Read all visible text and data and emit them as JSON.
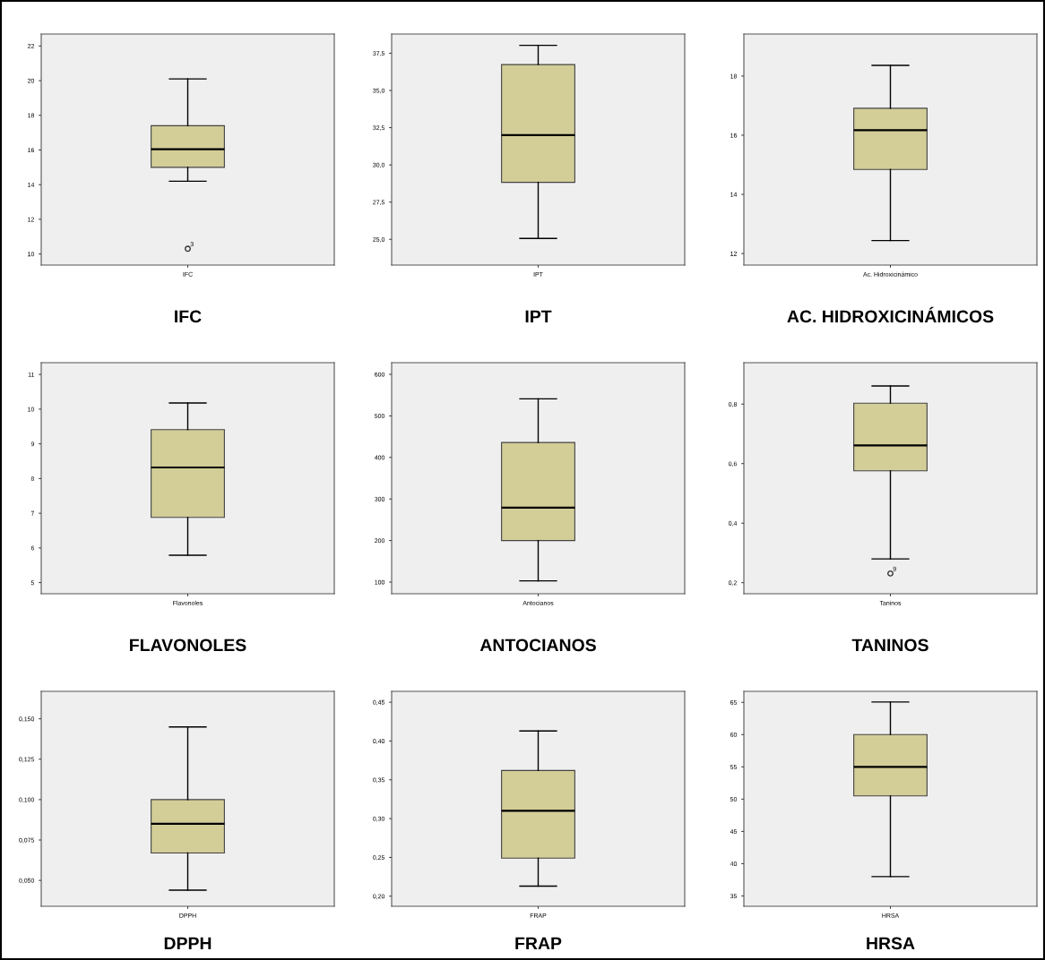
{
  "chart_data": [
    {
      "type": "box",
      "title": "IFC",
      "categories": [
        "IFC"
      ],
      "boxes": [
        {
          "low": 14.2,
          "q1": 15.0,
          "median": 16.05,
          "q3": 17.4,
          "high": 20.1,
          "outliers": [
            10.3
          ]
        }
      ],
      "color": "#d3cd98",
      "ylim": [
        9.36,
        22.69
      ],
      "yticks": [
        10,
        12,
        14,
        16,
        18,
        20,
        22
      ],
      "annotations": [
        "3"
      ]
    },
    {
      "type": "box",
      "title": "IPT",
      "categories": [
        "IPT"
      ],
      "boxes": [
        {
          "low": 25.06,
          "q1": 28.83,
          "median": 32.0,
          "q3": 36.74,
          "high": 38.03
        }
      ],
      "color": "#d3cd98",
      "ylim": [
        23.27,
        38.79
      ],
      "yticks": [
        {
          "value": 25.0,
          "label": "25,0"
        },
        {
          "value": 27.5,
          "label": "27,5"
        },
        {
          "value": 30.0,
          "label": "30,0"
        },
        {
          "value": 32.5,
          "label": "32,5"
        },
        {
          "value": 35.0,
          "label": "35,0"
        },
        {
          "value": 37.5,
          "label": "37,5"
        }
      ]
    },
    {
      "type": "box",
      "title": "AC. HIDROXICINÁMICOS",
      "categories": [
        "Ac. Hidroxicinámico"
      ],
      "boxes": [
        {
          "low": 12.44,
          "q1": 14.84,
          "median": 16.17,
          "q3": 16.91,
          "high": 18.36
        }
      ],
      "color": "#d3cd98",
      "ylim": [
        11.61,
        19.42
      ],
      "yticks": [
        12,
        14,
        16,
        18
      ]
    },
    {
      "type": "box",
      "title": "FLAVONOLES",
      "categories": [
        "Flavonoles"
      ],
      "boxes": [
        {
          "low": 5.79,
          "q1": 6.88,
          "median": 8.32,
          "q3": 9.41,
          "high": 10.18
        }
      ],
      "color": "#d3cd98",
      "ylim": [
        4.68,
        11.34
      ],
      "yticks": [
        5,
        6,
        7,
        8,
        9,
        10,
        11
      ]
    },
    {
      "type": "box",
      "title": "ANTOCIANOS",
      "categories": [
        "Antocianos"
      ],
      "boxes": [
        {
          "low": 103,
          "q1": 200,
          "median": 279,
          "q3": 436,
          "high": 541
        }
      ],
      "color": "#d3cd98",
      "ylim": [
        72,
        628
      ],
      "yticks": [
        100,
        200,
        300,
        400,
        500,
        600
      ]
    },
    {
      "type": "box",
      "title": "TANINOS",
      "categories": [
        "Taninos"
      ],
      "boxes": [
        {
          "low": 0.28,
          "q1": 0.576,
          "median": 0.661,
          "q3": 0.803,
          "high": 0.861,
          "outliers": [
            0.231
          ]
        }
      ],
      "color": "#d3cd98",
      "ylim": [
        0.163,
        0.939
      ],
      "yticks": [
        {
          "value": 0.2,
          "label": "0,2"
        },
        {
          "value": 0.4,
          "label": "0,4"
        },
        {
          "value": 0.6,
          "label": "0,6"
        },
        {
          "value": 0.8,
          "label": "0,8"
        }
      ],
      "annotations": [
        "9"
      ]
    },
    {
      "type": "box",
      "title": "DPPH",
      "categories": [
        "DPPH"
      ],
      "boxes": [
        {
          "low": 0.044,
          "q1": 0.067,
          "median": 0.085,
          "q3": 0.1,
          "high": 0.145
        }
      ],
      "color": "#d3cd98",
      "ylim": [
        0.034,
        0.167
      ],
      "yticks": [
        {
          "value": 0.05,
          "label": "0,050"
        },
        {
          "value": 0.075,
          "label": "0,075"
        },
        {
          "value": 0.1,
          "label": "0,100"
        },
        {
          "value": 0.125,
          "label": "0,125"
        },
        {
          "value": 0.15,
          "label": "0,150"
        }
      ]
    },
    {
      "type": "box",
      "title": "FRAP",
      "categories": [
        "FRAP"
      ],
      "boxes": [
        {
          "low": 0.213,
          "q1": 0.249,
          "median": 0.31,
          "q3": 0.362,
          "high": 0.413
        }
      ],
      "color": "#d3cd98",
      "ylim": [
        0.187,
        0.464
      ],
      "yticks": [
        {
          "value": 0.2,
          "label": "0,20"
        },
        {
          "value": 0.25,
          "label": "0,25"
        },
        {
          "value": 0.3,
          "label": "0,30"
        },
        {
          "value": 0.35,
          "label": "0,35"
        },
        {
          "value": 0.4,
          "label": "0,40"
        },
        {
          "value": 0.45,
          "label": "0,45"
        }
      ]
    },
    {
      "type": "box",
      "title": "HRSA",
      "categories": [
        "HRSA"
      ],
      "boxes": [
        {
          "low": 38.0,
          "q1": 50.5,
          "median": 55.0,
          "q3": 60.0,
          "high": 65.05
        }
      ],
      "color": "#d3cd98",
      "ylim": [
        33.4,
        66.7
      ],
      "yticks": [
        35,
        40,
        45,
        50,
        55,
        60,
        65
      ]
    }
  ]
}
